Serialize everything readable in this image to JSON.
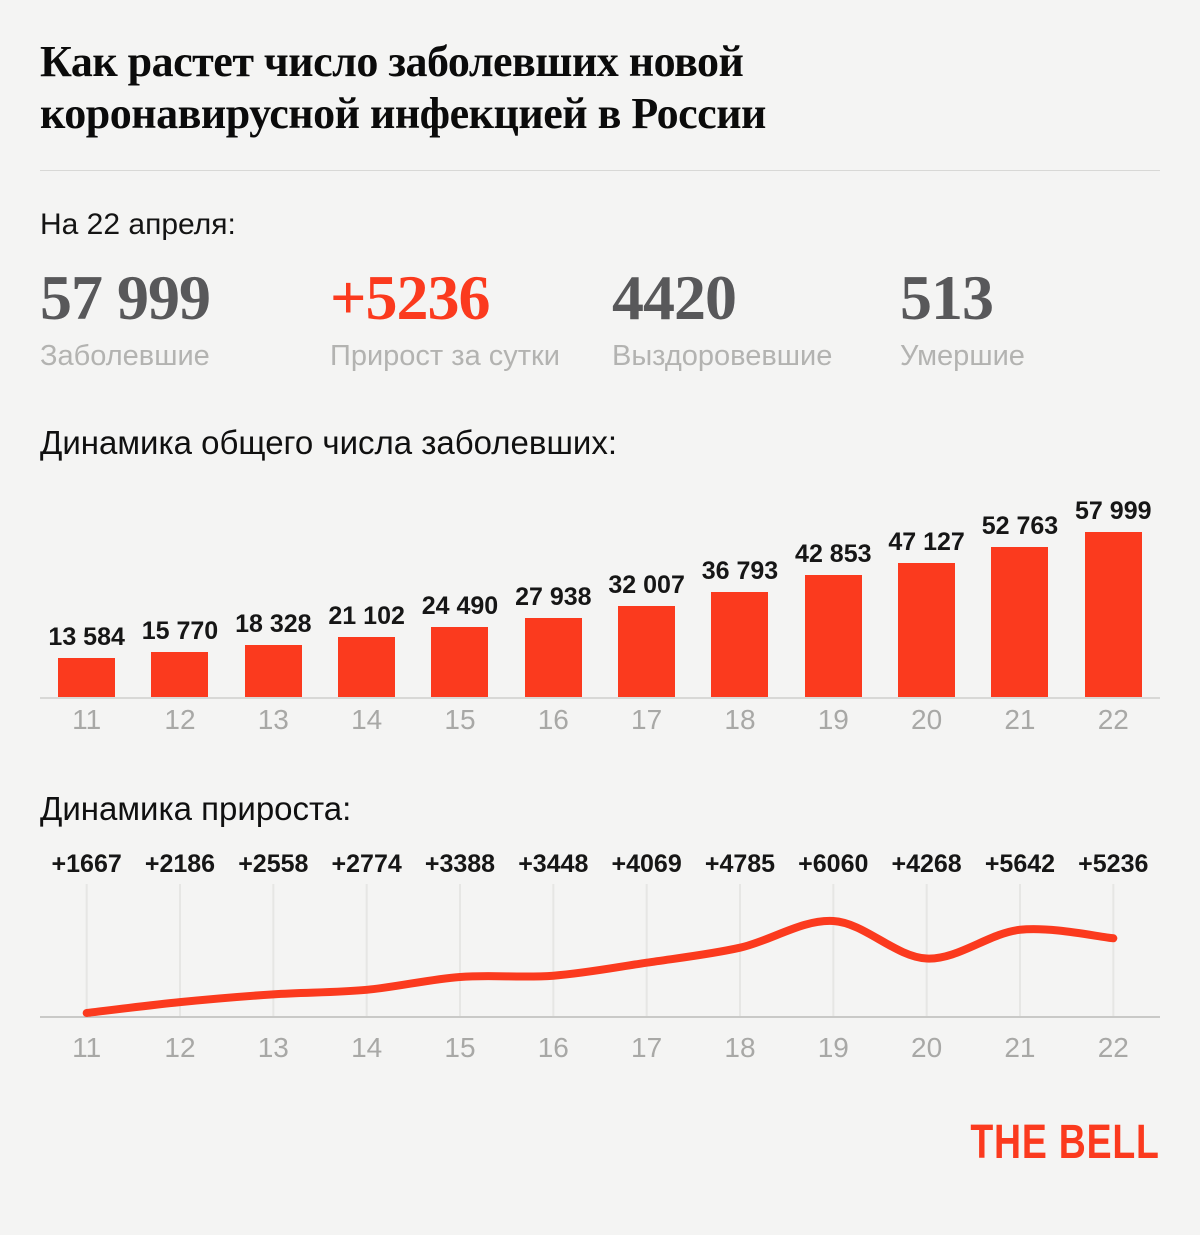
{
  "page": {
    "background": "#f4f4f3",
    "accent_color": "#fb3a1e",
    "number_color": "#58585a",
    "muted_color": "#b3b3b1"
  },
  "header": {
    "title_line1": "Как растет число заболевших новой",
    "title_line2": "коронавирусной инфекцией в России"
  },
  "summary": {
    "date_label": "На 22 апреля:",
    "stats": [
      {
        "value": "57 999",
        "label": "Заболевшие",
        "emphasis": false
      },
      {
        "value": "+5236",
        "label": "Прирост за сутки",
        "emphasis": true
      },
      {
        "value": "4420",
        "label": "Выздоровевшие",
        "emphasis": false
      },
      {
        "value": "513",
        "label": "Умершие",
        "emphasis": false
      }
    ]
  },
  "chart_data": [
    {
      "type": "bar",
      "title": "Динамика общего числа заболевших:",
      "categories": [
        "11",
        "12",
        "13",
        "14",
        "15",
        "16",
        "17",
        "18",
        "19",
        "20",
        "21",
        "22"
      ],
      "values": [
        13584,
        15770,
        18328,
        21102,
        24490,
        27938,
        32007,
        36793,
        42853,
        47127,
        52763,
        57999
      ],
      "value_labels": [
        "13 584",
        "15 770",
        "18 328",
        "21 102",
        "24 490",
        "27 938",
        "32 007",
        "36 793",
        "42 853",
        "47 127",
        "52 763",
        "57 999"
      ],
      "bar_color": "#fb3a1e",
      "xlabel": "",
      "ylabel": "",
      "ylim": [
        0,
        57999
      ],
      "grid": false,
      "legend": "none"
    },
    {
      "type": "line",
      "title": "Динамика прироста:",
      "categories": [
        "11",
        "12",
        "13",
        "14",
        "15",
        "16",
        "17",
        "18",
        "19",
        "20",
        "21",
        "22"
      ],
      "values": [
        1667,
        2186,
        2558,
        2774,
        3388,
        3448,
        4069,
        4785,
        6060,
        4268,
        5642,
        5236
      ],
      "value_labels": [
        "+1667",
        "+2186",
        "+2558",
        "+2774",
        "+3388",
        "+3448",
        "+4069",
        "+4785",
        "+6060",
        "+4268",
        "+5642",
        "+5236"
      ],
      "line_color": "#fb3a1e",
      "xlabel": "",
      "ylabel": "",
      "ylim": [
        1667,
        6060
      ],
      "grid": true,
      "legend": "none"
    }
  ],
  "footer": {
    "logo": "THE BELL"
  }
}
